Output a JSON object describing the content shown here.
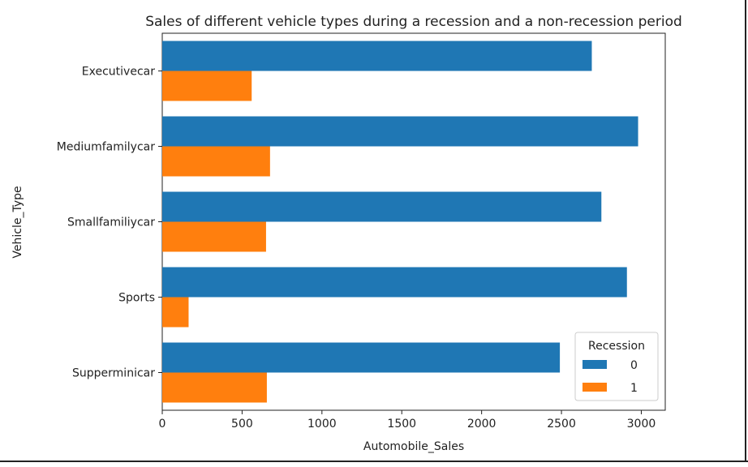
{
  "chart_data": {
    "type": "bar",
    "orientation": "horizontal",
    "title": "Sales of different vehicle types during a recession and a non-recession period",
    "xlabel": "Automobile_Sales",
    "ylabel": "Vehicle_Type",
    "categories": [
      "Executivecar",
      "Mediumfamilycar",
      "Smallfamiliycar",
      "Sports",
      "Supperminicar"
    ],
    "series": [
      {
        "name": "0",
        "color": "#1f77b4",
        "values": [
          2690,
          2980,
          2750,
          2910,
          2490
        ]
      },
      {
        "name": "1",
        "color": "#ff7f0e",
        "values": [
          560,
          675,
          650,
          165,
          655
        ]
      }
    ],
    "xlim": [
      0,
      3150
    ],
    "xticks": [
      "0",
      "500",
      "1000",
      "1500",
      "2000",
      "2500",
      "3000"
    ],
    "legend": {
      "title": "Recession",
      "placement": "lower-right"
    },
    "grid": false
  }
}
